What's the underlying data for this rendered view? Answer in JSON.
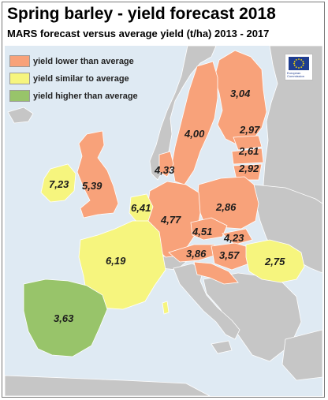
{
  "title": "Spring barley - yield forecast 2018",
  "subtitle": "MARS forecast versus average yield (t/ha) 2013 - 2017",
  "colors": {
    "lower": "#f8a27a",
    "similar": "#f6f57e",
    "higher": "#98c46a",
    "no_data": "#c6c6c6",
    "sea": "#dfeaf3"
  },
  "legend": [
    {
      "label": "yield lower than average",
      "category": "lower"
    },
    {
      "label": "yield similar to average",
      "category": "similar"
    },
    {
      "label": "yield higher than average",
      "category": "higher"
    }
  ],
  "logo": {
    "icon": "eu-flag-icon",
    "text_line1": "European",
    "text_line2": "Commission"
  },
  "yields": [
    {
      "value": "3,04",
      "category": "lower"
    },
    {
      "value": "4,00",
      "category": "lower"
    },
    {
      "value": "2,97",
      "category": "lower"
    },
    {
      "value": "2,61",
      "category": "lower"
    },
    {
      "value": "2,92",
      "category": "lower"
    },
    {
      "value": "4,33",
      "category": "lower"
    },
    {
      "value": "7,23",
      "category": "similar"
    },
    {
      "value": "5,39",
      "category": "lower"
    },
    {
      "value": "6,41",
      "category": "similar"
    },
    {
      "value": "2,86",
      "category": "lower"
    },
    {
      "value": "4,77",
      "category": "lower"
    },
    {
      "value": "4,51",
      "category": "lower"
    },
    {
      "value": "4,23",
      "category": "lower"
    },
    {
      "value": "6,19",
      "category": "similar"
    },
    {
      "value": "3,86",
      "category": "lower"
    },
    {
      "value": "3,57",
      "category": "lower"
    },
    {
      "value": "2,75",
      "category": "similar"
    },
    {
      "value": "3,63",
      "category": "higher"
    }
  ]
}
